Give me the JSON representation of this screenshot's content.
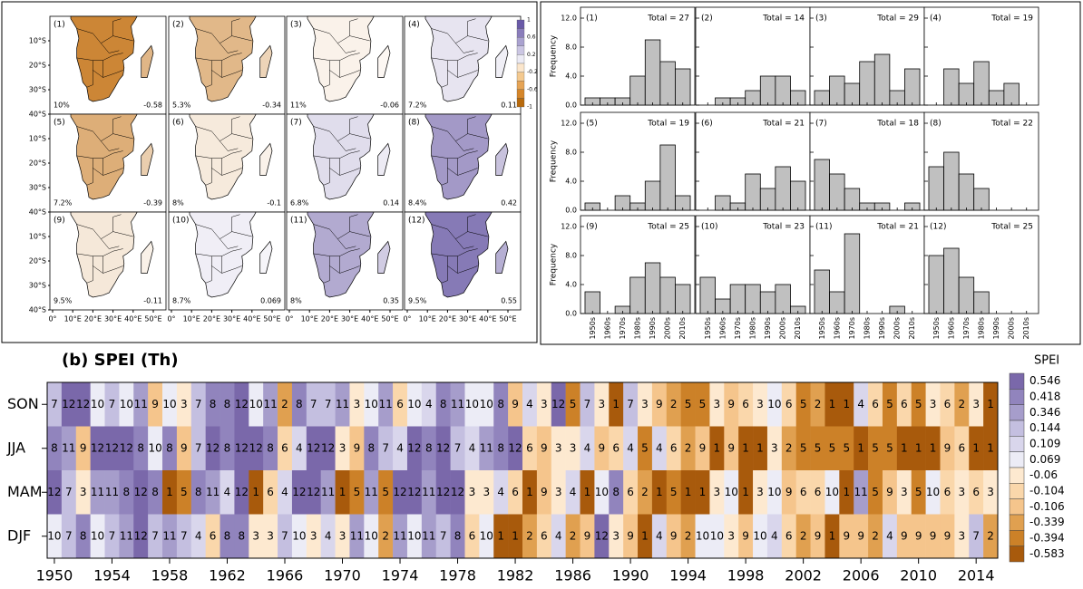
{
  "chart_data": [
    {
      "type": "map",
      "panels": [
        {
          "label": "(1)",
          "percent": "10%",
          "mean": -0.58
        },
        {
          "label": "(2)",
          "percent": "5.3%",
          "mean": -0.34
        },
        {
          "label": "(3)",
          "percent": "11%",
          "mean": -0.06
        },
        {
          "label": "(4)",
          "percent": "7.2%",
          "mean": 0.11
        },
        {
          "label": "(5)",
          "percent": "7.2%",
          "mean": -0.39
        },
        {
          "label": "(6)",
          "percent": "8%",
          "mean": -0.1
        },
        {
          "label": "(7)",
          "percent": "6.8%",
          "mean": 0.14
        },
        {
          "label": "(8)",
          "percent": "8.4%",
          "mean": 0.42
        },
        {
          "label": "(9)",
          "percent": "9.5%",
          "mean": -0.11
        },
        {
          "label": "(10)",
          "percent": "8.7%",
          "mean": 0.069
        },
        {
          "label": "(11)",
          "percent": "8%",
          "mean": 0.35
        },
        {
          "label": "(12)",
          "percent": "9.5%",
          "mean": 0.55
        }
      ],
      "yticks": [
        {
          "value": -10,
          "label": "10°S"
        },
        {
          "value": -20,
          "label": "20°S"
        },
        {
          "value": -30,
          "label": "30°S"
        },
        {
          "value": -40,
          "label": "40°S"
        }
      ],
      "xticks": [
        {
          "value": 0,
          "label": "0°"
        },
        {
          "value": 10,
          "label": "10°E"
        },
        {
          "value": 20,
          "label": "20°E"
        },
        {
          "value": 30,
          "label": "30°E"
        },
        {
          "value": 40,
          "label": "40°E"
        },
        {
          "value": 50,
          "label": "50°E"
        }
      ],
      "colorbar": {
        "ticks": [
          1,
          0.6,
          0.2,
          -0.2,
          -0.6,
          -1
        ],
        "colors": [
          "#6a5aa8",
          "#8a7dbb",
          "#aaa2d0",
          "#cbc6e3",
          "#ecebf5",
          "#fbe6cc",
          "#f4c98f",
          "#e6a455",
          "#d5862a",
          "#b86a0c"
        ]
      }
    },
    {
      "type": "bar",
      "categories": [
        "1950s",
        "1960s",
        "1970s",
        "1980s",
        "1990s",
        "2000s",
        "2010s"
      ],
      "ylabel": "Frequency",
      "color": "#c0c0c0",
      "ylim": [
        0,
        13.5
      ],
      "yticks": [
        {
          "value": 0,
          "label": "0.0"
        },
        {
          "value": 4,
          "label": "4.0"
        },
        {
          "value": 8,
          "label": "8.0"
        },
        {
          "value": 12,
          "label": "12.0"
        }
      ],
      "panels": [
        {
          "label": "(1)",
          "total": "Total = 27",
          "values": [
            1,
            1,
            1,
            4,
            9,
            6,
            5
          ]
        },
        {
          "label": "(2)",
          "total": "Total = 14",
          "values": [
            0,
            1,
            1,
            2,
            4,
            4,
            2
          ]
        },
        {
          "label": "(3)",
          "total": "Total = 29",
          "values": [
            2,
            4,
            3,
            6,
            7,
            2,
            5
          ]
        },
        {
          "label": "(4)",
          "total": "Total = 19",
          "values": [
            0,
            5,
            3,
            6,
            2,
            3,
            0
          ]
        },
        {
          "label": "(5)",
          "total": "Total = 19",
          "values": [
            1,
            0,
            2,
            1,
            4,
            9,
            2
          ]
        },
        {
          "label": "(6)",
          "total": "Total = 21",
          "values": [
            0,
            2,
            1,
            5,
            3,
            6,
            4
          ]
        },
        {
          "label": "(7)",
          "total": "Total = 18",
          "values": [
            7,
            5,
            3,
            1,
            1,
            0,
            1
          ]
        },
        {
          "label": "(8)",
          "total": "Total = 22",
          "values": [
            6,
            8,
            5,
            3,
            0,
            0,
            0
          ]
        },
        {
          "label": "(9)",
          "total": "Total = 25",
          "values": [
            3,
            0,
            1,
            5,
            7,
            5,
            4
          ]
        },
        {
          "label": "(10)",
          "total": "Total = 23",
          "values": [
            5,
            2,
            4,
            4,
            3,
            4,
            1
          ]
        },
        {
          "label": "(11)",
          "total": "Total = 21",
          "values": [
            6,
            3,
            11,
            0,
            0,
            1,
            0
          ]
        },
        {
          "label": "(12)",
          "total": "Total = 25",
          "values": [
            8,
            9,
            5,
            3,
            0,
            0,
            0
          ]
        }
      ]
    },
    {
      "type": "heatmap",
      "title": "(b) SPEI (Th)",
      "rows": [
        "SON",
        "JJA",
        "MAM",
        "DJF"
      ],
      "x": [
        1950,
        1951,
        1952,
        1953,
        1954,
        1955,
        1956,
        1957,
        1958,
        1959,
        1960,
        1961,
        1962,
        1963,
        1964,
        1965,
        1966,
        1967,
        1968,
        1969,
        1970,
        1971,
        1972,
        1973,
        1974,
        1975,
        1976,
        1977,
        1978,
        1979,
        1980,
        1981,
        1982,
        1983,
        1984,
        1985,
        1986,
        1987,
        1988,
        1989,
        1990,
        1991,
        1992,
        1993,
        1994,
        1995,
        1996,
        1997,
        1998,
        1999,
        2000,
        2001,
        2002,
        2003,
        2004,
        2005,
        2006,
        2007,
        2008,
        2009,
        2010,
        2011,
        2012,
        2013,
        2014,
        2015
      ],
      "xlim": [
        1949.5,
        2015.5
      ],
      "xticks": [
        1950,
        1954,
        1958,
        1962,
        1966,
        1970,
        1974,
        1978,
        1982,
        1986,
        1990,
        1994,
        1998,
        2002,
        2006,
        2010,
        2014
      ],
      "values": [
        [
          7,
          12,
          12,
          10,
          7,
          10,
          11,
          9,
          10,
          3,
          7,
          8,
          8,
          12,
          10,
          11,
          2,
          8,
          7,
          7,
          11,
          3,
          10,
          11,
          6,
          10,
          4,
          8,
          11,
          10,
          10,
          8,
          9,
          4,
          3,
          12,
          5,
          7,
          3,
          1,
          7,
          3,
          9,
          2,
          5,
          5,
          3,
          9,
          6,
          3,
          10,
          6,
          5,
          2,
          1,
          1,
          4,
          6,
          5,
          6,
          5,
          3,
          6,
          2,
          3,
          1
        ],
        [
          8,
          11,
          9,
          12,
          12,
          12,
          8,
          10,
          8,
          9,
          7,
          12,
          8,
          12,
          12,
          8,
          6,
          4,
          12,
          12,
          3,
          9,
          8,
          7,
          4,
          12,
          8,
          12,
          7,
          4,
          11,
          8,
          12,
          6,
          9,
          3,
          3,
          4,
          9,
          6,
          4,
          5,
          4,
          6,
          2,
          9,
          1,
          9,
          1,
          1,
          3,
          2,
          5,
          5,
          5,
          5,
          1,
          5,
          5,
          1,
          1,
          1,
          9,
          6,
          1,
          1
        ],
        [
          12,
          7,
          3,
          11,
          11,
          8,
          12,
          8,
          1,
          5,
          8,
          11,
          4,
          12,
          1,
          6,
          4,
          12,
          12,
          11,
          1,
          5,
          11,
          5,
          12,
          12,
          11,
          12,
          12,
          3,
          3,
          4,
          6,
          1,
          9,
          3,
          4,
          1,
          10,
          8,
          6,
          2,
          1,
          5,
          1,
          1,
          3,
          10,
          1,
          3,
          10,
          9,
          6,
          6,
          10,
          1,
          11,
          5,
          9,
          3,
          5,
          10,
          6,
          3,
          6,
          3
        ],
        [
          10,
          7,
          8,
          10,
          7,
          11,
          12,
          7,
          11,
          7,
          4,
          6,
          8,
          8,
          3,
          3,
          7,
          10,
          3,
          4,
          3,
          11,
          10,
          2,
          11,
          10,
          11,
          7,
          8,
          6,
          10,
          1,
          1,
          2,
          6,
          4,
          2,
          9,
          12,
          3,
          9,
          1,
          4,
          9,
          2,
          10,
          10,
          3,
          9,
          10,
          4,
          6,
          2,
          9,
          1,
          9,
          9,
          2,
          4,
          9,
          9,
          9,
          9,
          3,
          7,
          2
        ]
      ],
      "colorbar": {
        "title": "SPEI",
        "labels": [
          0.546,
          0.418,
          0.346,
          0.144,
          0.109,
          0.069,
          -0.06,
          -0.104,
          -0.106,
          -0.339,
          -0.394,
          -0.583
        ],
        "colors": [
          "#7a68aa",
          "#9184bd",
          "#a69dcb",
          "#c4bfe0",
          "#d9d6ec",
          "#ececf6",
          "#fde9d0",
          "#fad7ab",
          "#f5c58c",
          "#e0a050",
          "#cc8128",
          "#a85a0c"
        ]
      }
    }
  ]
}
